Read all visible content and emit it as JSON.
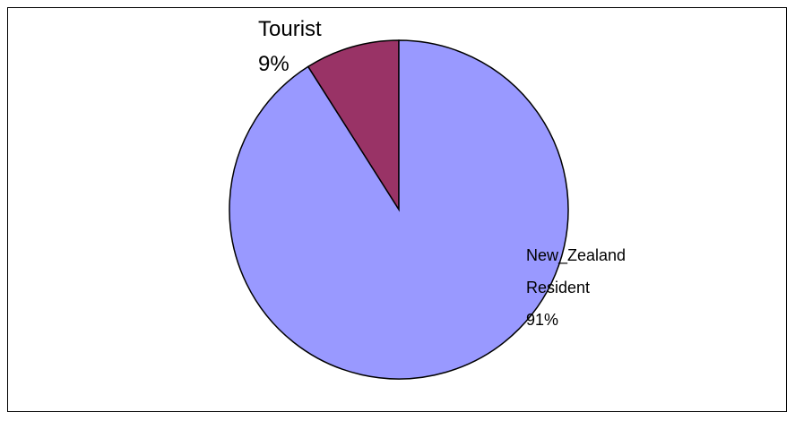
{
  "chart_data": {
    "type": "pie",
    "title": "",
    "slices": [
      {
        "label": "Tourist",
        "percent_label": "9%",
        "value": 9,
        "color": "#993366"
      },
      {
        "label": "New_Zealand Resident",
        "label_lines": [
          "New_Zealand",
          "Resident"
        ],
        "percent_label": "91%",
        "value": 91,
        "color": "#9999ff"
      }
    ],
    "start_angle": "12 o'clock",
    "direction": "counter-clockwise",
    "border_color": "#000000",
    "legend": "none"
  }
}
